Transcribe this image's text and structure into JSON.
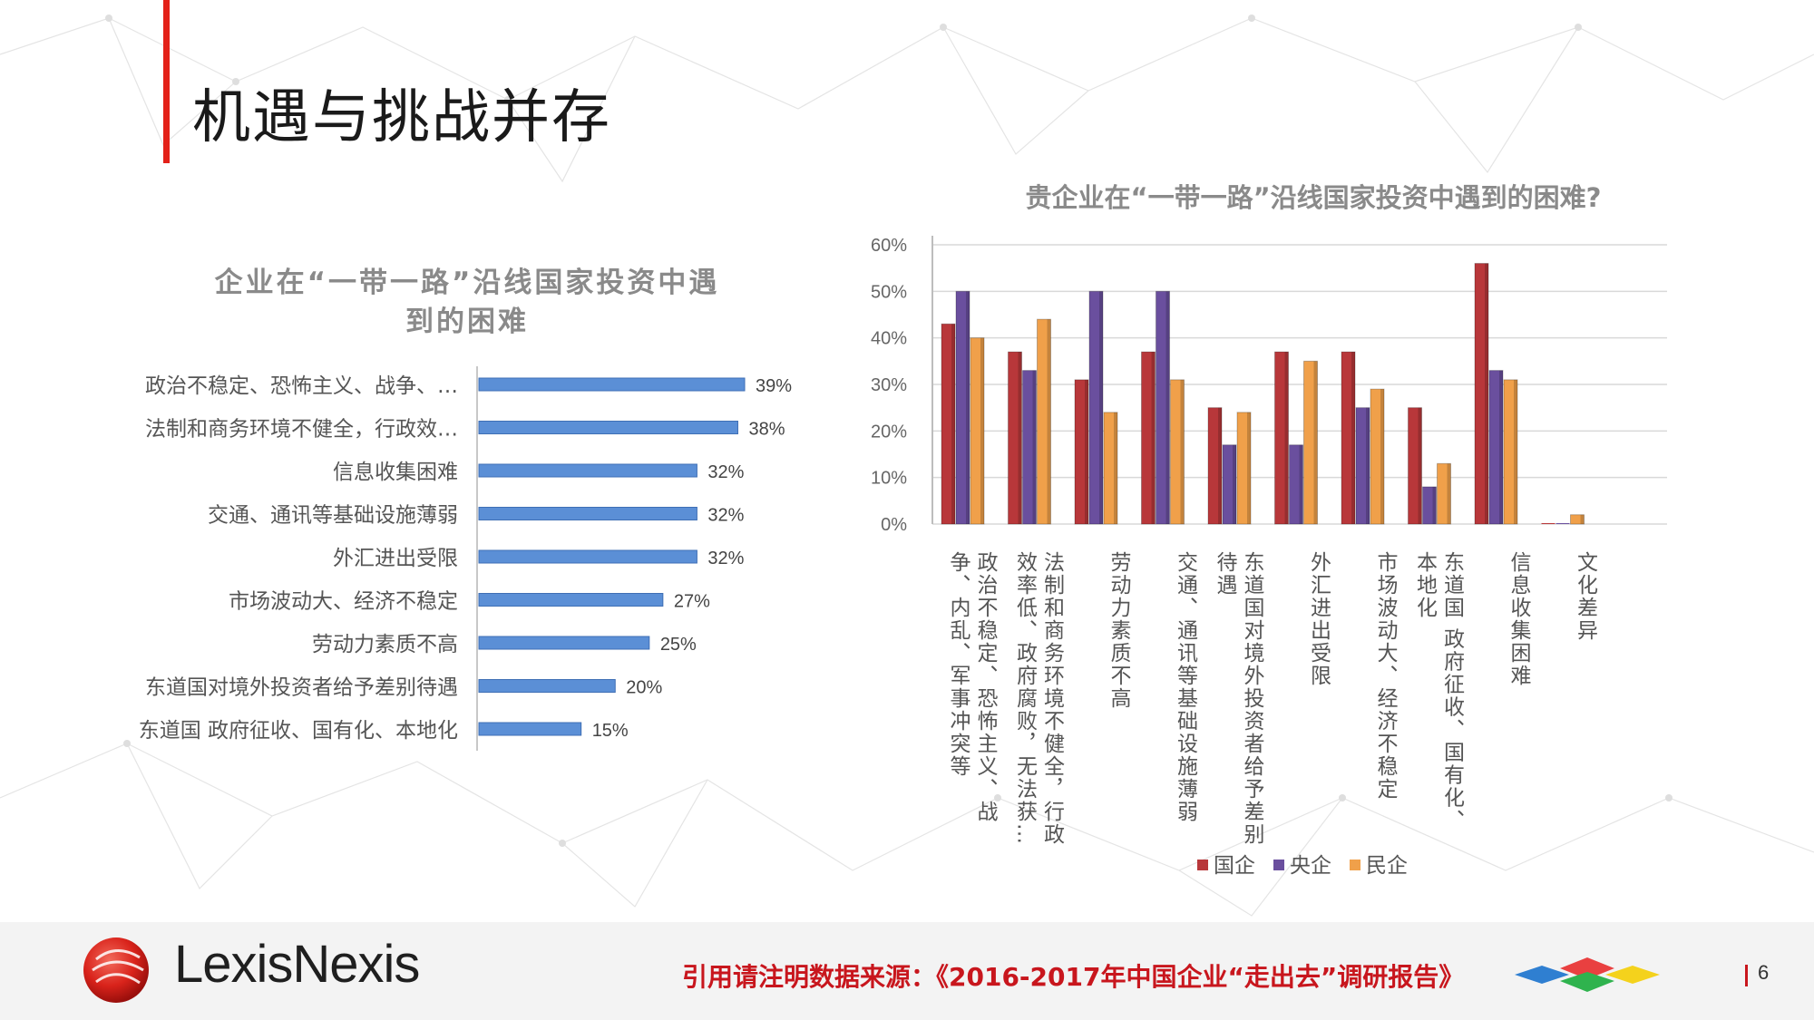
{
  "slide": {
    "title": "机遇与挑战并存",
    "source_note": "引用请注明数据来源：《2016-2017年中国企业“走出去”调研报告》",
    "page_number": "6",
    "logo_text": "LexisNexis"
  },
  "colors": {
    "accent": "#e32119",
    "hbar": "#5b8fd6",
    "guoqi": "#b8373a",
    "yangqi": "#6a4f9e",
    "minqi": "#f0a04a"
  },
  "chart_data": [
    {
      "type": "bar",
      "orientation": "horizontal",
      "title": "企业在“一带一路”沿线国家投资中遇到的困难",
      "categories": [
        "政治不稳定、恐怖主义、战争、…",
        "法制和商务环境不健全，行政效…",
        "信息收集困难",
        "交通、通讯等基础设施薄弱",
        "外汇进出受限",
        "市场波动大、经济不稳定",
        "劳动力素质不高",
        "东道国对境外投资者给予差别待遇",
        "东道国  政府征收、国有化、本地化"
      ],
      "values": [
        39,
        38,
        32,
        32,
        32,
        27,
        25,
        20,
        15
      ],
      "value_labels": [
        "39%",
        "38%",
        "32%",
        "32%",
        "32%",
        "27%",
        "25%",
        "20%",
        "15%"
      ],
      "xlim": [
        0,
        40
      ]
    },
    {
      "type": "bar",
      "orientation": "vertical",
      "title": "贵企业在“一带一路”沿线国家投资中遇到的困难?",
      "categories": [
        "政治不稳定、恐怖主义、战争、内乱、军事冲突等",
        "法制和商务环境不健全，行政效率低、政府腐败，无法获…",
        "劳动力素质不高",
        "交通、通讯等基础设施薄弱",
        "东道国对境外投资者给予差别待遇",
        "外汇进出受限",
        "市场波动大、经济不稳定",
        "东道国  政府征收、国有化、本地化",
        "信息收集困难",
        "文化差异"
      ],
      "category_lines": [
        [
          "政治不稳定、恐怖主义、战",
          "争、内乱、军事冲突等"
        ],
        [
          "法制和商务环境不健全，行政",
          "效率低、政府腐败，无法获…"
        ],
        [
          "劳动力素质不高"
        ],
        [
          "交通、通讯等基础设施薄弱"
        ],
        [
          "东道国对境外投资者给予差别",
          "待遇"
        ],
        [
          "外汇进出受限"
        ],
        [
          "市场波动大、经济不稳定"
        ],
        [
          "东道国  政府征收、国有化、",
          "本地化"
        ],
        [
          "信息收集困难"
        ],
        [
          "文化差异"
        ]
      ],
      "series": [
        {
          "name": "国企",
          "values": [
            43,
            37,
            31,
            37,
            25,
            37,
            37,
            25,
            56,
            0
          ]
        },
        {
          "name": "央企",
          "values": [
            50,
            33,
            50,
            50,
            17,
            17,
            25,
            8,
            33,
            0
          ]
        },
        {
          "name": "民企",
          "values": [
            40,
            44,
            24,
            31,
            24,
            35,
            29,
            13,
            31,
            2
          ]
        }
      ],
      "ytick_labels": [
        "0%",
        "10%",
        "20%",
        "30%",
        "40%",
        "50%",
        "60%"
      ],
      "ylim": [
        0,
        60
      ],
      "grid": true,
      "legend_position": "bottom"
    }
  ]
}
